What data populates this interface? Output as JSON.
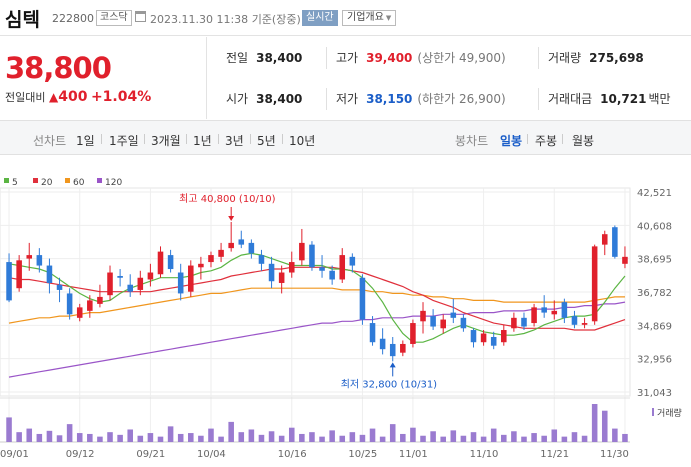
{
  "header": {
    "stock_name": "심텍",
    "stock_code": "222800",
    "market": "코스닥",
    "datetime": "2023.11.30 11:38",
    "basis": "기준(장중)",
    "realtime_label": "실시간",
    "company_label": "기업개요"
  },
  "price": {
    "current": "38,800",
    "change_label": "전일대비",
    "change_amount": "400",
    "change_percent": "+1.04%"
  },
  "stats": {
    "prev_close_label": "전일",
    "prev_close": "38,400",
    "high_label": "고가",
    "high": "39,400",
    "upper_limit": "(상한가 49,900)",
    "volume_label": "거래량",
    "volume": "275,698",
    "open_label": "시가",
    "open": "38,400",
    "low_label": "저가",
    "low": "38,150",
    "lower_limit": "(하한가 26,900)",
    "trade_value_label": "거래대금",
    "trade_value": "10,721",
    "trade_value_unit": "백만"
  },
  "tabs": {
    "line_label": "선차트",
    "line_items": [
      "1일",
      "1주일",
      "3개월",
      "1년",
      "3년",
      "5년",
      "10년"
    ],
    "candle_label": "봉차트",
    "candle_items": [
      "일봉",
      "주봉",
      "월봉"
    ],
    "candle_active": "일봉"
  },
  "colors": {
    "up": "#e0202c",
    "down": "#2f7bd8",
    "ma5": "#5bb543",
    "ma20": "#e0303c",
    "ma60": "#f0961e",
    "ma120": "#9a55c8",
    "volume": "#9a7bd0"
  },
  "chart_data": {
    "type": "candlestick",
    "legend": [
      {
        "name": "5",
        "color": "#5bb543"
      },
      {
        "name": "20",
        "color": "#e0303c"
      },
      {
        "name": "60",
        "color": "#f0961e"
      },
      {
        "name": "120",
        "color": "#9a55c8"
      }
    ],
    "y_ticks": [
      42521,
      40608,
      38695,
      36782,
      34869,
      32956,
      31043
    ],
    "y_tick_labels": [
      "42,521",
      "40,608",
      "38,695",
      "36,782",
      "34,869",
      "32,956",
      "31,043"
    ],
    "ylim": [
      31043,
      42521
    ],
    "x_labels": [
      "09/01",
      "09/12",
      "09/21",
      "10/04",
      "10/16",
      "10/25",
      "11/01",
      "11/10",
      "11/21",
      "11/30"
    ],
    "x_label_index": [
      0,
      7,
      14,
      20,
      28,
      35,
      40,
      47,
      54,
      61
    ],
    "annotation_high": "최고 40,800 (10/10)",
    "annotation_low": "최저 32,800 (10/31)",
    "annotation_high_index": 22,
    "annotation_low_index": 38,
    "volume_label": "거래량",
    "candles": [
      {
        "o": 38500,
        "h": 39000,
        "l": 36200,
        "c": 36300
      },
      {
        "o": 37000,
        "h": 38900,
        "l": 36800,
        "c": 38600
      },
      {
        "o": 38700,
        "h": 39600,
        "l": 38000,
        "c": 38900
      },
      {
        "o": 38900,
        "h": 39300,
        "l": 37900,
        "c": 38300
      },
      {
        "o": 38300,
        "h": 38700,
        "l": 36700,
        "c": 37300
      },
      {
        "o": 37200,
        "h": 37600,
        "l": 36200,
        "c": 36900
      },
      {
        "o": 36700,
        "h": 37000,
        "l": 35200,
        "c": 35500
      },
      {
        "o": 35300,
        "h": 36100,
        "l": 35100,
        "c": 35900
      },
      {
        "o": 35700,
        "h": 36600,
        "l": 35300,
        "c": 36300
      },
      {
        "o": 36100,
        "h": 37200,
        "l": 35900,
        "c": 36500
      },
      {
        "o": 36600,
        "h": 38300,
        "l": 36300,
        "c": 37900
      },
      {
        "o": 37700,
        "h": 38100,
        "l": 37100,
        "c": 37600
      },
      {
        "o": 37200,
        "h": 37800,
        "l": 36500,
        "c": 36800
      },
      {
        "o": 36900,
        "h": 38000,
        "l": 36600,
        "c": 37600
      },
      {
        "o": 37500,
        "h": 38400,
        "l": 37100,
        "c": 37900
      },
      {
        "o": 37800,
        "h": 39400,
        "l": 37600,
        "c": 39100
      },
      {
        "o": 38900,
        "h": 39200,
        "l": 37900,
        "c": 38100
      },
      {
        "o": 37900,
        "h": 38400,
        "l": 36300,
        "c": 36700
      },
      {
        "o": 36800,
        "h": 38600,
        "l": 36500,
        "c": 38300
      },
      {
        "o": 38200,
        "h": 38800,
        "l": 37500,
        "c": 38400
      },
      {
        "o": 38500,
        "h": 39100,
        "l": 38200,
        "c": 38900
      },
      {
        "o": 38800,
        "h": 39600,
        "l": 38500,
        "c": 39200
      },
      {
        "o": 39300,
        "h": 40800,
        "l": 39100,
        "c": 39600
      },
      {
        "o": 39800,
        "h": 40300,
        "l": 39300,
        "c": 39500
      },
      {
        "o": 39600,
        "h": 39800,
        "l": 38700,
        "c": 39000
      },
      {
        "o": 38900,
        "h": 39200,
        "l": 38000,
        "c": 38400
      },
      {
        "o": 38400,
        "h": 38800,
        "l": 37000,
        "c": 37400
      },
      {
        "o": 37300,
        "h": 38300,
        "l": 36700,
        "c": 37900
      },
      {
        "o": 37900,
        "h": 39100,
        "l": 37600,
        "c": 38500
      },
      {
        "o": 38600,
        "h": 40400,
        "l": 38300,
        "c": 39600
      },
      {
        "o": 39500,
        "h": 39700,
        "l": 38000,
        "c": 38200
      },
      {
        "o": 38200,
        "h": 38900,
        "l": 37600,
        "c": 38000
      },
      {
        "o": 38000,
        "h": 38300,
        "l": 37200,
        "c": 37500
      },
      {
        "o": 37500,
        "h": 39300,
        "l": 37300,
        "c": 38900
      },
      {
        "o": 38800,
        "h": 39000,
        "l": 37900,
        "c": 38300
      },
      {
        "o": 37600,
        "h": 37800,
        "l": 34900,
        "c": 35200
      },
      {
        "o": 35000,
        "h": 35400,
        "l": 33700,
        "c": 33900
      },
      {
        "o": 34100,
        "h": 34700,
        "l": 33200,
        "c": 33500
      },
      {
        "o": 33800,
        "h": 34200,
        "l": 32800,
        "c": 33100
      },
      {
        "o": 33300,
        "h": 34000,
        "l": 33100,
        "c": 33800
      },
      {
        "o": 33800,
        "h": 35200,
        "l": 33600,
        "c": 35000
      },
      {
        "o": 35100,
        "h": 36200,
        "l": 34400,
        "c": 35700
      },
      {
        "o": 35400,
        "h": 35800,
        "l": 34600,
        "c": 34800
      },
      {
        "o": 34700,
        "h": 35500,
        "l": 34400,
        "c": 35200
      },
      {
        "o": 35600,
        "h": 36400,
        "l": 35000,
        "c": 35300
      },
      {
        "o": 35300,
        "h": 35500,
        "l": 34500,
        "c": 34700
      },
      {
        "o": 34600,
        "h": 34700,
        "l": 33600,
        "c": 33900
      },
      {
        "o": 33900,
        "h": 34600,
        "l": 33700,
        "c": 34400
      },
      {
        "o": 34200,
        "h": 34500,
        "l": 33500,
        "c": 33700
      },
      {
        "o": 33900,
        "h": 34900,
        "l": 33700,
        "c": 34600
      },
      {
        "o": 34700,
        "h": 35600,
        "l": 34500,
        "c": 35300
      },
      {
        "o": 35300,
        "h": 35600,
        "l": 34600,
        "c": 34800
      },
      {
        "o": 35000,
        "h": 36100,
        "l": 34800,
        "c": 35900
      },
      {
        "o": 35900,
        "h": 36600,
        "l": 35300,
        "c": 35600
      },
      {
        "o": 35500,
        "h": 36300,
        "l": 35200,
        "c": 35700
      },
      {
        "o": 36200,
        "h": 36400,
        "l": 35000,
        "c": 35300
      },
      {
        "o": 35400,
        "h": 35700,
        "l": 34700,
        "c": 34900
      },
      {
        "o": 34900,
        "h": 35300,
        "l": 34700,
        "c": 35000
      },
      {
        "o": 35100,
        "h": 39500,
        "l": 34900,
        "c": 39400
      },
      {
        "o": 39500,
        "h": 40300,
        "l": 38900,
        "c": 40100
      },
      {
        "o": 40500,
        "h": 40600,
        "l": 38700,
        "c": 38800
      },
      {
        "o": 38400,
        "h": 39400,
        "l": 38150,
        "c": 38800
      }
    ],
    "ma5": [
      38400,
      38300,
      38200,
      38100,
      37900,
      37500,
      37100,
      36700,
      36400,
      36200,
      36300,
      36700,
      37000,
      37200,
      37400,
      37600,
      37600,
      37600,
      37700,
      37900,
      38000,
      38200,
      38600,
      38900,
      39000,
      38900,
      38700,
      38500,
      38300,
      38300,
      38300,
      38300,
      38100,
      38100,
      38000,
      37600,
      37000,
      36200,
      35200,
      34400,
      33900,
      33900,
      34100,
      34400,
      34700,
      34900,
      34700,
      34500,
      34400,
      34300,
      34300,
      34400,
      34600,
      34900,
      35100,
      35300,
      35400,
      35400,
      35500,
      36200,
      37000,
      37700
    ],
    "ma20": [
      37600,
      37500,
      37500,
      37400,
      37300,
      37200,
      37100,
      37000,
      36900,
      36800,
      36800,
      36800,
      36800,
      36800,
      36800,
      36900,
      37000,
      37100,
      37200,
      37300,
      37400,
      37500,
      37700,
      37800,
      37900,
      38000,
      38100,
      38100,
      38200,
      38200,
      38200,
      38200,
      38200,
      38100,
      38000,
      37900,
      37700,
      37500,
      37300,
      37100,
      36800,
      36600,
      36300,
      36100,
      35900,
      35600,
      35400,
      35200,
      35000,
      34900,
      34800,
      34700,
      34700,
      34700,
      34700,
      34700,
      34600,
      34600,
      34600,
      34800,
      35000,
      35200
    ],
    "ma60": [
      35000,
      35100,
      35200,
      35300,
      35300,
      35400,
      35400,
      35500,
      35600,
      35600,
      35700,
      35800,
      35900,
      36000,
      36100,
      36200,
      36300,
      36400,
      36500,
      36600,
      36700,
      36700,
      36800,
      36900,
      37000,
      37000,
      37000,
      37000,
      37000,
      37000,
      37000,
      37000,
      37000,
      36900,
      36900,
      36900,
      36800,
      36800,
      36700,
      36700,
      36600,
      36600,
      36500,
      36500,
      36400,
      36400,
      36300,
      36300,
      36300,
      36200,
      36200,
      36200,
      36200,
      36200,
      36200,
      36200,
      36200,
      36200,
      36300,
      36400,
      36500,
      36500
    ],
    "ma120": [
      31900,
      32000,
      32100,
      32200,
      32300,
      32400,
      32500,
      32600,
      32700,
      32800,
      32900,
      33000,
      33100,
      33200,
      33300,
      33400,
      33500,
      33600,
      33700,
      33800,
      33900,
      34000,
      34100,
      34200,
      34300,
      34400,
      34500,
      34600,
      34700,
      34800,
      34900,
      35000,
      35000,
      35100,
      35100,
      35200,
      35200,
      35300,
      35300,
      35300,
      35400,
      35400,
      35400,
      35500,
      35500,
      35500,
      35600,
      35600,
      35600,
      35700,
      35700,
      35700,
      35800,
      35800,
      35800,
      35900,
      35900,
      36000,
      36000,
      36100,
      36100,
      36200
    ],
    "volume": [
      55,
      22,
      30,
      18,
      25,
      15,
      40,
      20,
      18,
      12,
      22,
      16,
      28,
      14,
      20,
      12,
      35,
      18,
      20,
      14,
      30,
      12,
      45,
      22,
      28,
      16,
      24,
      14,
      32,
      18,
      22,
      12,
      26,
      14,
      22,
      16,
      30,
      12,
      40,
      18,
      32,
      14,
      24,
      12,
      26,
      14,
      22,
      12,
      30,
      16,
      24,
      12,
      20,
      14,
      28,
      12,
      22,
      14,
      85,
      70,
      30,
      18
    ]
  }
}
